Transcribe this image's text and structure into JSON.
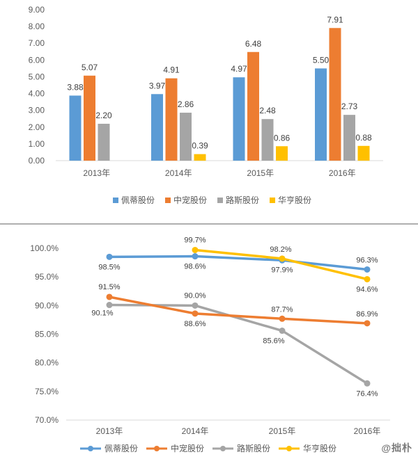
{
  "colors": {
    "peidi": "#5B9BD5",
    "zhongchong": "#ED7D31",
    "lusi": "#A5A5A5",
    "huaheng": "#FFC000",
    "axis": "#d9d9d9",
    "text": "#595959",
    "divider": "#7f7f7f"
  },
  "watermark": "@拙朴",
  "chart_data": [
    {
      "type": "bar",
      "categories": [
        "2013年",
        "2014年",
        "2015年",
        "2016年"
      ],
      "ylim": [
        0,
        9
      ],
      "yticks": [
        "0.00",
        "1.00",
        "2.00",
        "3.00",
        "4.00",
        "5.00",
        "6.00",
        "7.00",
        "8.00",
        "9.00"
      ],
      "grid": false,
      "legend": "bottom",
      "series": [
        {
          "name": "佩蒂股份",
          "values": [
            3.88,
            3.97,
            4.97,
            5.5
          ],
          "labels": [
            "3.88",
            "3.97",
            "4.97",
            "5.50"
          ],
          "color": "#5B9BD5"
        },
        {
          "name": "中宠股份",
          "values": [
            5.07,
            4.91,
            6.48,
            7.91
          ],
          "labels": [
            "5.07",
            "4.91",
            "6.48",
            "7.91"
          ],
          "color": "#ED7D31"
        },
        {
          "name": "路斯股份",
          "values": [
            2.2,
            2.86,
            2.48,
            2.73
          ],
          "labels": [
            "2.20",
            "2.86",
            "2.48",
            "2.73"
          ],
          "color": "#A5A5A5"
        },
        {
          "name": "华亨股份",
          "values": [
            null,
            0.39,
            0.86,
            0.88
          ],
          "labels": [
            "",
            "0.39",
            "0.86",
            "0.88"
          ],
          "color": "#FFC000"
        }
      ]
    },
    {
      "type": "line",
      "categories": [
        "2013年",
        "2014年",
        "2015年",
        "2016年"
      ],
      "ylim": [
        70,
        100
      ],
      "yticks": [
        "70.0%",
        "75.0%",
        "80.0%",
        "85.0%",
        "90.0%",
        "95.0%",
        "100.0%"
      ],
      "grid": false,
      "legend": "bottom",
      "series": [
        {
          "name": "佩蒂股份",
          "values": [
            98.5,
            98.6,
            97.9,
            96.3
          ],
          "labels": [
            "98.5%",
            "98.6%",
            "97.9%",
            "96.3%"
          ],
          "color": "#5B9BD5"
        },
        {
          "name": "中宠股份",
          "values": [
            91.5,
            88.6,
            87.7,
            86.9
          ],
          "labels": [
            "91.5%",
            "88.6%",
            "87.7%",
            "86.9%"
          ],
          "color": "#ED7D31"
        },
        {
          "name": "路斯股份",
          "values": [
            90.1,
            90.0,
            85.6,
            76.4
          ],
          "labels": [
            "90.1%",
            "90.0%",
            "85.6%",
            "76.4%"
          ],
          "color": "#A5A5A5"
        },
        {
          "name": "华亨股份",
          "values": [
            null,
            99.7,
            98.2,
            94.6
          ],
          "labels": [
            "",
            "99.7%",
            "98.2%",
            "94.6%"
          ],
          "color": "#FFC000"
        }
      ]
    }
  ]
}
